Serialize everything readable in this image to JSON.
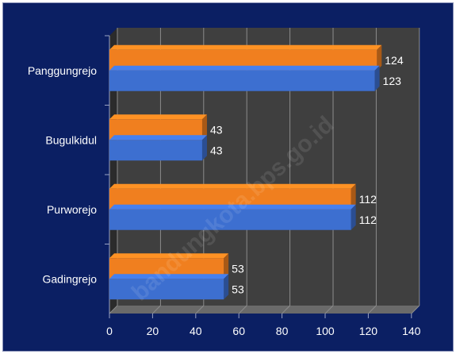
{
  "chart_data": {
    "type": "bar",
    "orientation": "horizontal",
    "style": "3d-clustered",
    "categories": [
      "Panggungrejo",
      "Bugulkidul",
      "Purworejo",
      "Gadingrejo"
    ],
    "series": [
      {
        "values": [
          124,
          43,
          112,
          53
        ],
        "color": "#f07f1f"
      },
      {
        "values": [
          123,
          43,
          112,
          53
        ],
        "color": "#3d6fd0"
      }
    ],
    "xlim": [
      0,
      140
    ],
    "xticks": [
      0,
      20,
      40,
      60,
      80,
      100,
      120,
      140
    ],
    "grid": true,
    "legend": "none",
    "background": "#0b1f63",
    "plot_wall": "#3f3f3f",
    "watermark": "bandungkota.bps.go.id"
  }
}
